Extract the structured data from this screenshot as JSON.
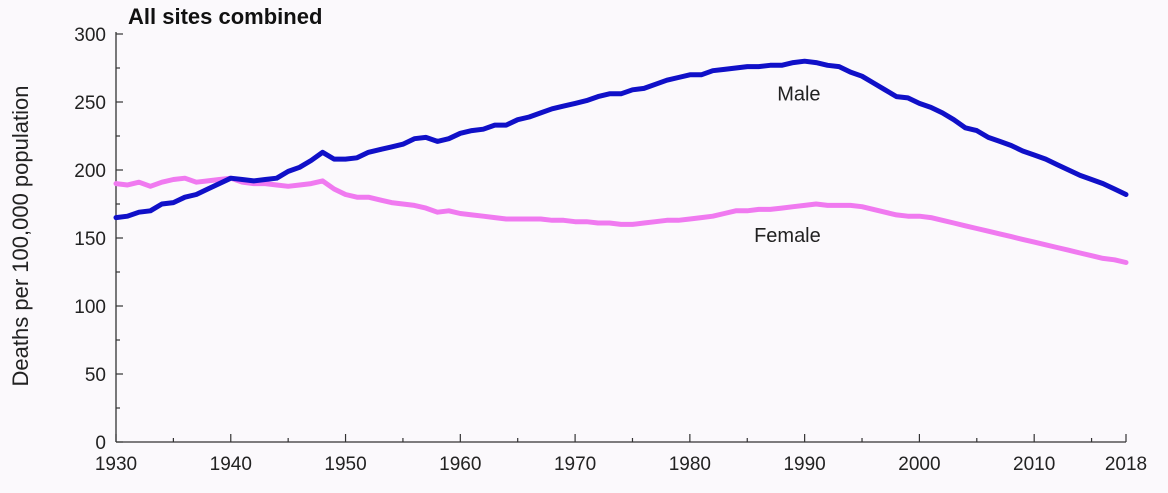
{
  "chart_data": {
    "type": "line",
    "title": "All sites combined",
    "xlabel": "",
    "ylabel": "Deaths per 100,000 population",
    "xlim": [
      1930,
      2018
    ],
    "ylim": [
      0,
      300
    ],
    "x_ticks": [
      1930,
      1940,
      1950,
      1960,
      1970,
      1980,
      1990,
      2000,
      2010,
      2018
    ],
    "x_tick_labels": [
      "1930",
      "1940",
      "1950",
      "1960",
      "1970",
      "1980",
      "1990",
      "2000",
      "2010",
      "2018"
    ],
    "y_ticks": [
      0,
      50,
      100,
      150,
      200,
      250,
      300
    ],
    "y_tick_labels": [
      "0",
      "50",
      "100",
      "150",
      "200",
      "250",
      "300"
    ],
    "grid": false,
    "legend": "none",
    "series": [
      {
        "name": "Male",
        "color": "#1010c8",
        "label_position": [
          1989.5,
          251
        ],
        "x": [
          1930,
          1931,
          1932,
          1933,
          1934,
          1935,
          1936,
          1937,
          1938,
          1939,
          1940,
          1941,
          1942,
          1943,
          1944,
          1945,
          1946,
          1947,
          1948,
          1949,
          1950,
          1951,
          1952,
          1953,
          1954,
          1955,
          1956,
          1957,
          1958,
          1959,
          1960,
          1961,
          1962,
          1963,
          1964,
          1965,
          1966,
          1967,
          1968,
          1969,
          1970,
          1971,
          1972,
          1973,
          1974,
          1975,
          1976,
          1977,
          1978,
          1979,
          1980,
          1981,
          1982,
          1983,
          1984,
          1985,
          1986,
          1987,
          1988,
          1989,
          1990,
          1991,
          1992,
          1993,
          1994,
          1995,
          1996,
          1997,
          1998,
          1999,
          2000,
          2001,
          2002,
          2003,
          2004,
          2005,
          2006,
          2007,
          2008,
          2009,
          2010,
          2011,
          2012,
          2013,
          2014,
          2015,
          2016,
          2017,
          2018
        ],
        "values": [
          165,
          166,
          169,
          170,
          175,
          176,
          180,
          182,
          186,
          190,
          194,
          193,
          192,
          193,
          194,
          199,
          202,
          207,
          213,
          208,
          208,
          209,
          213,
          215,
          217,
          219,
          223,
          224,
          221,
          223,
          227,
          229,
          230,
          233,
          233,
          237,
          239,
          242,
          245,
          247,
          249,
          251,
          254,
          256,
          256,
          259,
          260,
          263,
          266,
          268,
          270,
          270,
          273,
          274,
          275,
          276,
          276,
          277,
          277,
          279,
          280,
          279,
          277,
          276,
          272,
          269,
          264,
          259,
          254,
          253,
          249,
          246,
          242,
          237,
          231,
          229,
          224,
          221,
          218,
          214,
          211,
          208,
          204,
          200,
          196,
          193,
          190,
          186,
          182
        ]
      },
      {
        "name": "Female",
        "color": "#f07af0",
        "label_position": [
          1988.5,
          147
        ],
        "x": [
          1930,
          1931,
          1932,
          1933,
          1934,
          1935,
          1936,
          1937,
          1938,
          1939,
          1940,
          1941,
          1942,
          1943,
          1944,
          1945,
          1946,
          1947,
          1948,
          1949,
          1950,
          1951,
          1952,
          1953,
          1954,
          1955,
          1956,
          1957,
          1958,
          1959,
          1960,
          1961,
          1962,
          1963,
          1964,
          1965,
          1966,
          1967,
          1968,
          1969,
          1970,
          1971,
          1972,
          1973,
          1974,
          1975,
          1976,
          1977,
          1978,
          1979,
          1980,
          1981,
          1982,
          1983,
          1984,
          1985,
          1986,
          1987,
          1988,
          1989,
          1990,
          1991,
          1992,
          1993,
          1994,
          1995,
          1996,
          1997,
          1998,
          1999,
          2000,
          2001,
          2002,
          2003,
          2004,
          2005,
          2006,
          2007,
          2008,
          2009,
          2010,
          2011,
          2012,
          2013,
          2014,
          2015,
          2016,
          2017,
          2018
        ],
        "values": [
          190,
          189,
          191,
          188,
          191,
          193,
          194,
          191,
          192,
          193,
          194,
          191,
          190,
          190,
          189,
          188,
          189,
          190,
          192,
          186,
          182,
          180,
          180,
          178,
          176,
          175,
          174,
          172,
          169,
          170,
          168,
          167,
          166,
          165,
          164,
          164,
          164,
          164,
          163,
          163,
          162,
          162,
          161,
          161,
          160,
          160,
          161,
          162,
          163,
          163,
          164,
          165,
          166,
          168,
          170,
          170,
          171,
          171,
          172,
          173,
          174,
          175,
          174,
          174,
          174,
          173,
          171,
          169,
          167,
          166,
          166,
          165,
          163,
          161,
          159,
          157,
          155,
          153,
          151,
          149,
          147,
          145,
          143,
          141,
          139,
          137,
          135,
          134,
          132
        ]
      }
    ]
  }
}
